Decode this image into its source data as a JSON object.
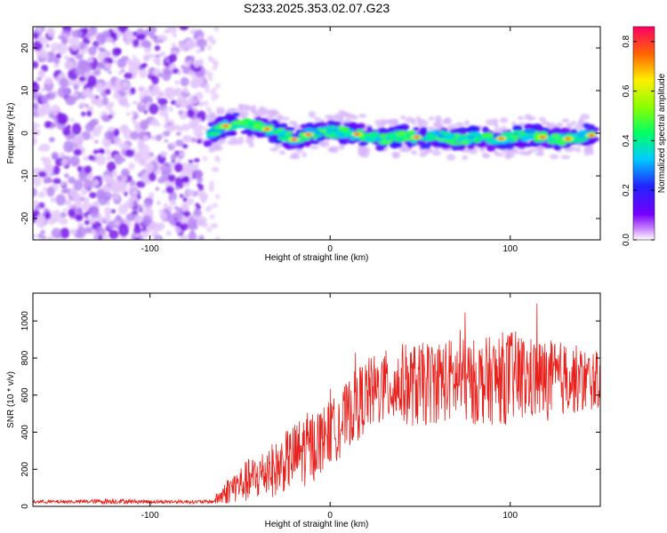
{
  "title": "S233.2025.353.02.07.G23",
  "chart_data": [
    {
      "type": "heatmap",
      "title": "S233.2025.353.02.07.G23",
      "xlabel": "Height of straight line (km)",
      "ylabel": "Frequency (Hz)",
      "xlim": [
        -165,
        150
      ],
      "ylim": [
        -25,
        25
      ],
      "xticks": [
        -100,
        0,
        100
      ],
      "yticks": [
        -20,
        -10,
        0,
        10,
        20
      ],
      "noise_region_x": [
        -165,
        -70
      ],
      "signal_start_x": -70,
      "ridge": {
        "x": [
          -70,
          -60,
          -50,
          -40,
          -30,
          -20,
          -10,
          0,
          10,
          20,
          30,
          40,
          50,
          60,
          70,
          80,
          90,
          100,
          110,
          120,
          130,
          140,
          145
        ],
        "freq": [
          -1,
          1.5,
          2.5,
          1.5,
          0.5,
          -1.5,
          0,
          0.5,
          0,
          -0.5,
          -1.5,
          -0.5,
          -1,
          -0.5,
          -1.5,
          -1,
          -1.5,
          -1,
          -0.5,
          -1,
          -1.5,
          -0.5,
          -0.5
        ]
      },
      "colorbar": {
        "label": "Normalized spectral amplitude",
        "range": [
          0.0,
          0.86
        ],
        "ticks": [
          0.0,
          0.2,
          0.4,
          0.6,
          0.8
        ]
      }
    },
    {
      "type": "line",
      "xlabel": "Height of straight line (km)",
      "ylabel": "SNR (10 * v/v)",
      "xlim": [
        -165,
        150
      ],
      "ylim": [
        0,
        1150
      ],
      "xticks": [
        -100,
        0,
        100
      ],
      "yticks": [
        0,
        200,
        400,
        600,
        800,
        1000
      ],
      "series": [
        {
          "name": "SNR",
          "color": "#e8211c",
          "x": [
            -165,
            -140,
            -120,
            -100,
            -80,
            -65,
            -60,
            -55,
            -50,
            -45,
            -40,
            -35,
            -30,
            -25,
            -20,
            -15,
            -10,
            -5,
            0,
            5,
            10,
            15,
            20,
            30,
            40,
            50,
            60,
            70,
            80,
            90,
            100,
            110,
            120,
            130,
            140,
            150
          ],
          "mean": [
            25,
            25,
            28,
            25,
            25,
            25,
            60,
            100,
            120,
            140,
            160,
            190,
            200,
            240,
            270,
            300,
            320,
            360,
            400,
            430,
            500,
            550,
            600,
            640,
            660,
            650,
            680,
            680,
            670,
            680,
            700,
            690,
            680,
            690,
            680,
            680
          ],
          "amplitude": [
            10,
            10,
            15,
            10,
            10,
            10,
            60,
            80,
            100,
            120,
            130,
            140,
            150,
            160,
            180,
            200,
            200,
            180,
            170,
            180,
            180,
            200,
            200,
            200,
            220,
            230,
            230,
            230,
            230,
            240,
            260,
            230,
            220,
            200,
            180,
            150
          ]
        }
      ]
    }
  ]
}
